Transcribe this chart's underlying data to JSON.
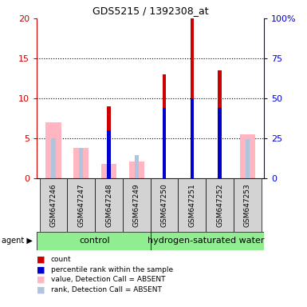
{
  "title": "GDS5215 / 1392308_at",
  "samples": [
    "GSM647246",
    "GSM647247",
    "GSM647248",
    "GSM647249",
    "GSM647250",
    "GSM647251",
    "GSM647252",
    "GSM647253"
  ],
  "count_red": [
    null,
    null,
    9.0,
    null,
    13.0,
    20.0,
    13.5,
    null
  ],
  "rank_blue": [
    null,
    null,
    6.0,
    null,
    8.8,
    10.0,
    8.8,
    null
  ],
  "value_absent_pink": [
    7.0,
    3.8,
    1.8,
    2.1,
    null,
    null,
    null,
    5.5
  ],
  "rank_absent_lblue": [
    5.0,
    3.8,
    null,
    2.9,
    null,
    null,
    null,
    4.9
  ],
  "ylim_left": [
    0,
    20
  ],
  "ylim_right": [
    0,
    100
  ],
  "yticks_left": [
    0,
    5,
    10,
    15,
    20
  ],
  "yticks_right": [
    0,
    25,
    50,
    75,
    100
  ],
  "ytick_right_labels": [
    "0",
    "25",
    "50",
    "75",
    "100%"
  ],
  "left_tick_color": "#cc0000",
  "right_tick_color": "#0000cc",
  "pink_bar_width": 0.55,
  "lblue_bar_width": 0.15,
  "red_bar_width": 0.12,
  "blue_bar_width": 0.12,
  "color_red": "#cc0000",
  "color_blue": "#0000cc",
  "color_pink": "#FFB6C1",
  "color_lblue": "#B0C4DE",
  "color_grey_box": "#d3d3d3",
  "color_green": "#90EE90",
  "grid_color": "black",
  "grid_style": ":",
  "grid_lw": 0.8,
  "grid_levels": [
    5,
    10,
    15
  ],
  "legend_items": [
    {
      "label": "count",
      "color": "#cc0000"
    },
    {
      "label": "percentile rank within the sample",
      "color": "#0000cc"
    },
    {
      "label": "value, Detection Call = ABSENT",
      "color": "#FFB6C1"
    },
    {
      "label": "rank, Detection Call = ABSENT",
      "color": "#B0C4DE"
    }
  ]
}
